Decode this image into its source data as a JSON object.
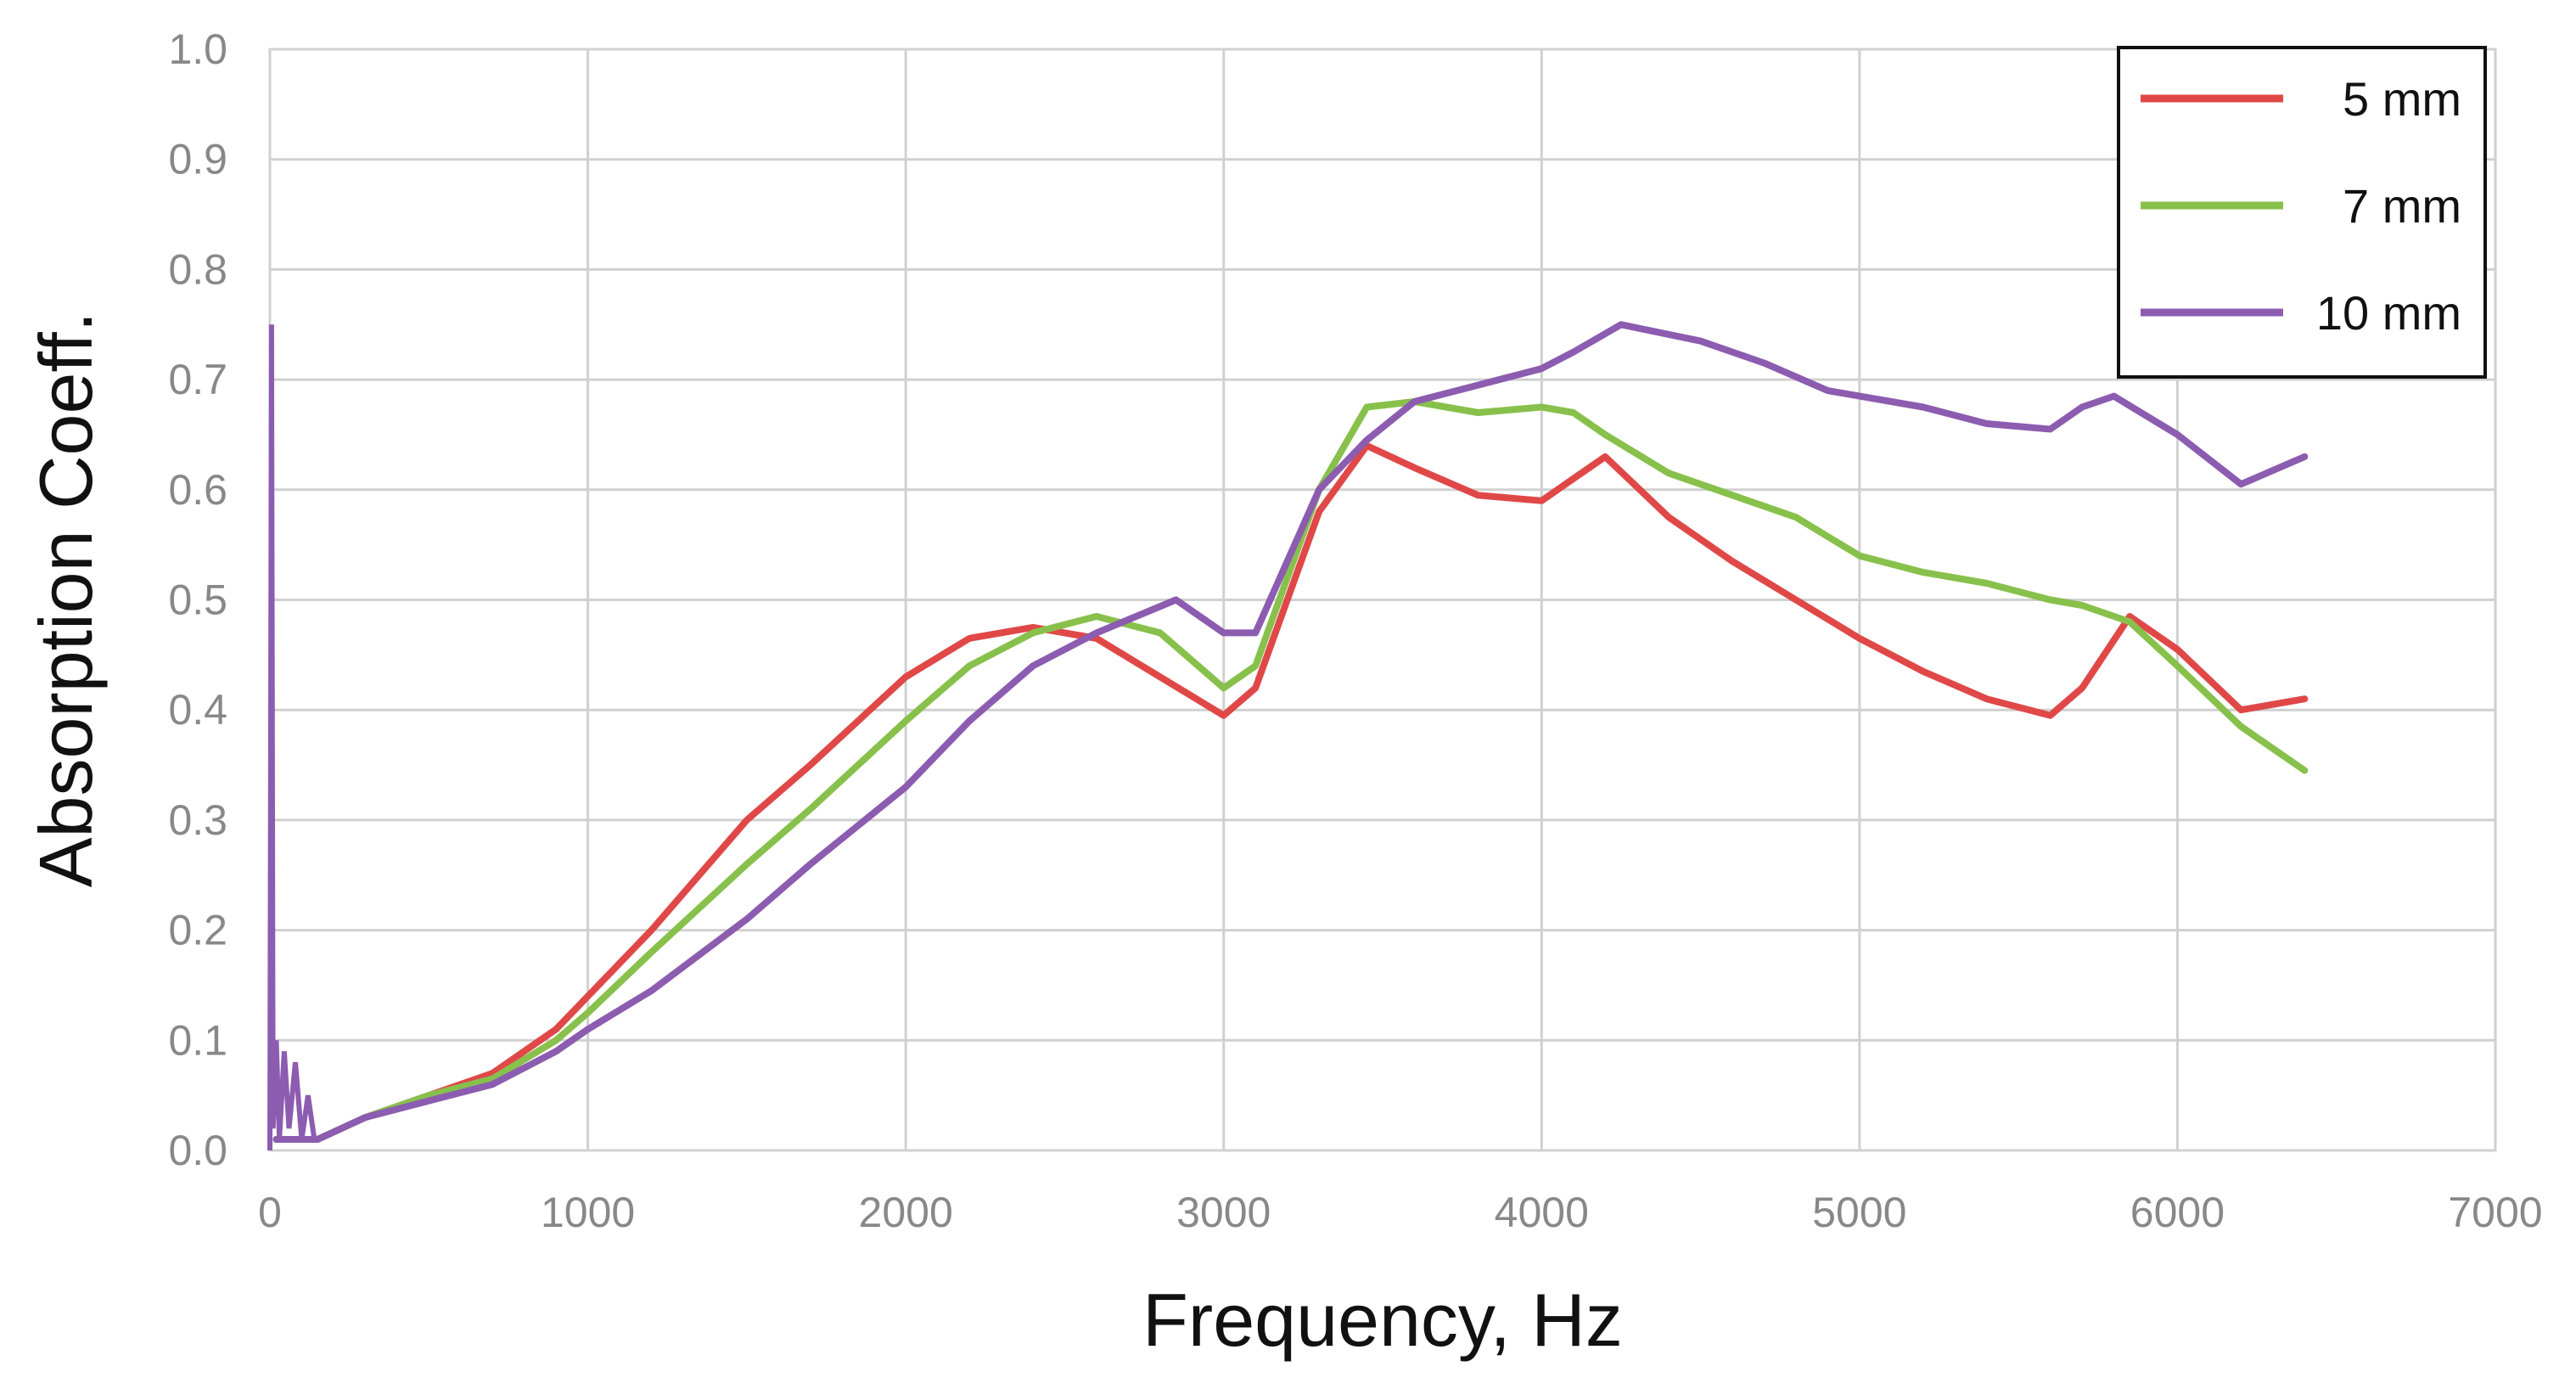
{
  "chart_data": {
    "type": "line",
    "title": "",
    "xlabel": "Frequency, Hz",
    "ylabel": "Absorption Coeff.",
    "xlim": [
      0,
      7000
    ],
    "ylim": [
      0,
      1.0
    ],
    "xticks": [
      "0",
      "1000",
      "2000",
      "3000",
      "4000",
      "5000",
      "6000",
      "7000"
    ],
    "yticks": [
      "0.0",
      "0.1",
      "0.2",
      "0.3",
      "0.4",
      "0.5",
      "0.6",
      "0.7",
      "0.8",
      "0.9",
      "1.0"
    ],
    "grid": true,
    "legend_position": "top-right",
    "series": [
      {
        "name": "5 mm",
        "color": "#e04848",
        "x": [
          20,
          150,
          300,
          500,
          700,
          900,
          1000,
          1200,
          1500,
          1700,
          2000,
          2200,
          2400,
          2600,
          2800,
          3000,
          3100,
          3300,
          3450,
          3600,
          3800,
          4000,
          4100,
          4200,
          4400,
          4600,
          4800,
          5000,
          5200,
          5400,
          5600,
          5700,
          5850,
          6000,
          6200,
          6400
        ],
        "y": [
          0.01,
          0.01,
          0.03,
          0.05,
          0.07,
          0.11,
          0.14,
          0.2,
          0.3,
          0.35,
          0.43,
          0.465,
          0.475,
          0.465,
          0.43,
          0.395,
          0.42,
          0.58,
          0.64,
          0.62,
          0.595,
          0.59,
          0.61,
          0.63,
          0.575,
          0.535,
          0.5,
          0.465,
          0.435,
          0.41,
          0.395,
          0.42,
          0.485,
          0.455,
          0.4,
          0.41
        ]
      },
      {
        "name": "7 mm",
        "color": "#88c04c",
        "x": [
          20,
          150,
          300,
          500,
          700,
          900,
          1000,
          1200,
          1500,
          1700,
          2000,
          2200,
          2400,
          2600,
          2800,
          3000,
          3100,
          3300,
          3450,
          3600,
          3800,
          4000,
          4100,
          4200,
          4400,
          4600,
          4800,
          5000,
          5200,
          5400,
          5600,
          5700,
          5850,
          6000,
          6200,
          6400
        ],
        "y": [
          0.01,
          0.01,
          0.03,
          0.05,
          0.065,
          0.1,
          0.125,
          0.18,
          0.26,
          0.31,
          0.39,
          0.44,
          0.47,
          0.485,
          0.47,
          0.42,
          0.44,
          0.6,
          0.675,
          0.68,
          0.67,
          0.675,
          0.67,
          0.65,
          0.615,
          0.595,
          0.575,
          0.54,
          0.525,
          0.515,
          0.5,
          0.495,
          0.48,
          0.44,
          0.385,
          0.345
        ]
      },
      {
        "name": "10 mm",
        "color": "#8c5cb0",
        "x": [
          20,
          150,
          300,
          500,
          700,
          900,
          1000,
          1200,
          1500,
          1700,
          2000,
          2200,
          2400,
          2600,
          2850,
          3000,
          3100,
          3300,
          3450,
          3600,
          3800,
          4000,
          4100,
          4250,
          4500,
          4700,
          4900,
          5000,
          5200,
          5400,
          5600,
          5700,
          5800,
          6000,
          6200,
          6400
        ],
        "y": [
          0.01,
          0.01,
          0.03,
          0.045,
          0.06,
          0.09,
          0.11,
          0.145,
          0.21,
          0.26,
          0.33,
          0.39,
          0.44,
          0.47,
          0.5,
          0.47,
          0.47,
          0.6,
          0.645,
          0.68,
          0.695,
          0.71,
          0.725,
          0.75,
          0.735,
          0.715,
          0.69,
          0.685,
          0.675,
          0.66,
          0.655,
          0.675,
          0.685,
          0.65,
          0.605,
          0.63
        ]
      }
    ]
  }
}
